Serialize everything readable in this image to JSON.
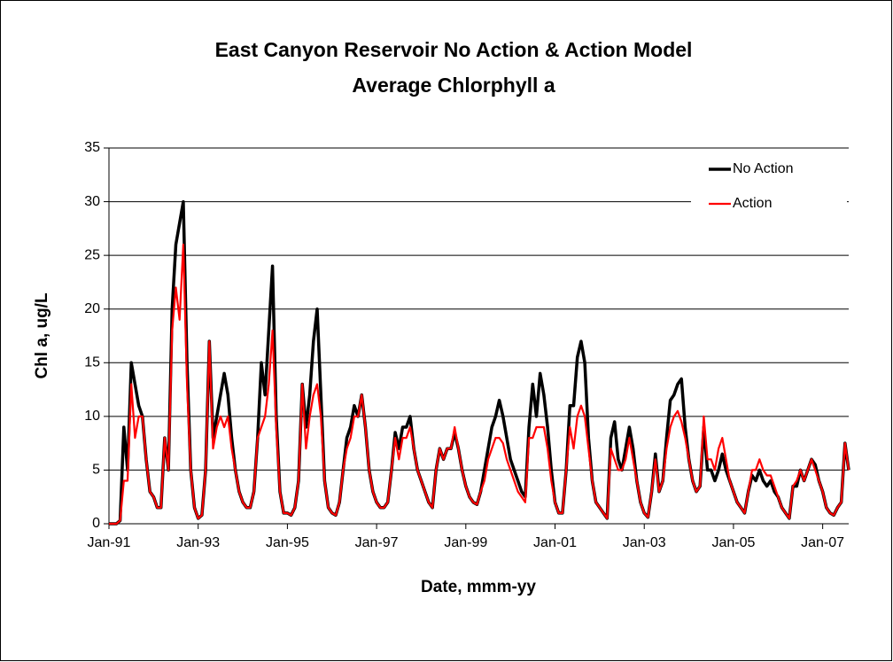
{
  "chart_data": {
    "type": "line",
    "title": [
      "East Canyon Reservoir No Action & Action Model",
      "Average Chlorphyll a"
    ],
    "xlabel": "Date, mmm-yy",
    "ylabel": "Chl a, ug/L",
    "x": [
      "1991-01",
      "1991-02",
      "1991-03",
      "1991-04",
      "1991-05",
      "1991-06",
      "1991-07",
      "1991-08",
      "1991-09",
      "1991-10",
      "1991-11",
      "1991-12",
      "1992-01",
      "1992-02",
      "1992-03",
      "1992-04",
      "1992-05",
      "1992-06",
      "1992-07",
      "1992-08",
      "1992-09",
      "1992-10",
      "1992-11",
      "1992-12",
      "1993-01",
      "1993-02",
      "1993-03",
      "1993-04",
      "1993-05",
      "1993-06",
      "1993-07",
      "1993-08",
      "1993-09",
      "1993-10",
      "1993-11",
      "1993-12",
      "1994-01",
      "1994-02",
      "1994-03",
      "1994-04",
      "1994-05",
      "1994-06",
      "1994-07",
      "1994-08",
      "1994-09",
      "1994-10",
      "1994-11",
      "1994-12",
      "1995-01",
      "1995-02",
      "1995-03",
      "1995-04",
      "1995-05",
      "1995-06",
      "1995-07",
      "1995-08",
      "1995-09",
      "1995-10",
      "1995-11",
      "1995-12",
      "1996-01",
      "1996-02",
      "1996-03",
      "1996-04",
      "1996-05",
      "1996-06",
      "1996-07",
      "1996-08",
      "1996-09",
      "1996-10",
      "1996-11",
      "1996-12",
      "1997-01",
      "1997-02",
      "1997-03",
      "1997-04",
      "1997-05",
      "1997-06",
      "1997-07",
      "1997-08",
      "1997-09",
      "1997-10",
      "1997-11",
      "1997-12",
      "1998-01",
      "1998-02",
      "1998-03",
      "1998-04",
      "1998-05",
      "1998-06",
      "1998-07",
      "1998-08",
      "1998-09",
      "1998-10",
      "1998-11",
      "1998-12",
      "1999-01",
      "1999-02",
      "1999-03",
      "1999-04",
      "1999-05",
      "1999-06",
      "1999-07",
      "1999-08",
      "1999-09",
      "1999-10",
      "1999-11",
      "1999-12",
      "2000-01",
      "2000-02",
      "2000-03",
      "2000-04",
      "2000-05",
      "2000-06",
      "2000-07",
      "2000-08",
      "2000-09",
      "2000-10",
      "2000-11",
      "2000-12",
      "2001-01",
      "2001-02",
      "2001-03",
      "2001-04",
      "2001-05",
      "2001-06",
      "2001-07",
      "2001-08",
      "2001-09",
      "2001-10",
      "2001-11",
      "2001-12",
      "2002-01",
      "2002-02",
      "2002-03",
      "2002-04",
      "2002-05",
      "2002-06",
      "2002-07",
      "2002-08",
      "2002-09",
      "2002-10",
      "2002-11",
      "2002-12",
      "2003-01",
      "2003-02",
      "2003-03",
      "2003-04",
      "2003-05",
      "2003-06",
      "2003-07",
      "2003-08",
      "2003-09",
      "2003-10",
      "2003-11",
      "2003-12",
      "2004-01",
      "2004-02",
      "2004-03",
      "2004-04",
      "2004-05",
      "2004-06",
      "2004-07",
      "2004-08",
      "2004-09",
      "2004-10",
      "2004-11",
      "2004-12",
      "2005-01",
      "2005-02",
      "2005-03",
      "2005-04",
      "2005-05",
      "2005-06",
      "2005-07",
      "2005-08",
      "2005-09",
      "2005-10",
      "2005-11",
      "2005-12",
      "2006-01",
      "2006-02",
      "2006-03",
      "2006-04",
      "2006-05",
      "2006-06",
      "2006-07",
      "2006-08",
      "2006-09",
      "2006-10",
      "2006-11",
      "2006-12",
      "2007-01",
      "2007-02",
      "2007-03",
      "2007-04",
      "2007-05",
      "2007-06",
      "2007-07",
      "2007-08"
    ],
    "series": [
      {
        "name": "No Action",
        "color": "#000000",
        "values": [
          0,
          0,
          0,
          0.3,
          9,
          5,
          15,
          13,
          11,
          10,
          6,
          3,
          2.5,
          1.5,
          1.5,
          8,
          5,
          20,
          26,
          28,
          30,
          15,
          5,
          1.5,
          0.5,
          0.8,
          5,
          17,
          8,
          10,
          12,
          14,
          12,
          8,
          5,
          3,
          2,
          1.5,
          1.5,
          3,
          8,
          15,
          12,
          18,
          24,
          10,
          3,
          1,
          1,
          0.8,
          1.5,
          4,
          13,
          9,
          12,
          17,
          20,
          12,
          4,
          1.5,
          1,
          0.8,
          2,
          5,
          8,
          9,
          11,
          10,
          12,
          9,
          5,
          3,
          2,
          1.5,
          1.5,
          2,
          5,
          8.5,
          7,
          9,
          9,
          10,
          7,
          5,
          4,
          3,
          2,
          1.5,
          5,
          7,
          6,
          7,
          7,
          8.5,
          7,
          5,
          3.5,
          2.5,
          2,
          1.8,
          3,
          5,
          7,
          9,
          10,
          11.5,
          10,
          8,
          6,
          5,
          4,
          3,
          2.5,
          9,
          13,
          10,
          14,
          12,
          9,
          5,
          2,
          1,
          1,
          5,
          11,
          11,
          15.5,
          17,
          15,
          8,
          4,
          2,
          1.5,
          1,
          0.5,
          8,
          9.5,
          6,
          5,
          7,
          9,
          7,
          4,
          2,
          1,
          0.6,
          3,
          6.5,
          3,
          4,
          8,
          11.5,
          12,
          13,
          13.5,
          9,
          6,
          4,
          3,
          3.5,
          9,
          5,
          5,
          4,
          5,
          6.5,
          5,
          4,
          3,
          2,
          1.5,
          1,
          3,
          4.5,
          4,
          5,
          4,
          3.5,
          4,
          3,
          2.5,
          1.5,
          1,
          0.5,
          3.5,
          3.5,
          5,
          4,
          5,
          6,
          5.5,
          4,
          3,
          1.5,
          1,
          0.8,
          1.5,
          2,
          7.5,
          5
        ]
      },
      {
        "name": "Action",
        "color": "#ff0000",
        "values": [
          0,
          0,
          0,
          0.3,
          4,
          4,
          13,
          8,
          10,
          10,
          6,
          3,
          2.5,
          1.5,
          1.5,
          8,
          5,
          18,
          22,
          19,
          26,
          13,
          5,
          1.5,
          0.5,
          0.8,
          5,
          17,
          7,
          9,
          10,
          9,
          10,
          7,
          5,
          3,
          2,
          1.5,
          1.5,
          3,
          8,
          9,
          10,
          13,
          18,
          9,
          3,
          1,
          1,
          0.8,
          1.5,
          4,
          13,
          7,
          10,
          12,
          13,
          10,
          4,
          1.5,
          1,
          0.8,
          2,
          5,
          7,
          8,
          10,
          10,
          12,
          9,
          5,
          3,
          2,
          1.5,
          1.5,
          2,
          5,
          8,
          6,
          8,
          8,
          9,
          7,
          5,
          4,
          3,
          2,
          1.5,
          5,
          7,
          6,
          7,
          7,
          9,
          7,
          5,
          3.5,
          2.5,
          2,
          1.8,
          3,
          4,
          6,
          7,
          8,
          8,
          7.5,
          6,
          5,
          4,
          3,
          2.5,
          2,
          8,
          8,
          9,
          9,
          9,
          7,
          4,
          2,
          1,
          1,
          5,
          9,
          7,
          10,
          11,
          10,
          7,
          4,
          2,
          1.5,
          1,
          0.5,
          7,
          6,
          5,
          5,
          6,
          8,
          6,
          4,
          2,
          1,
          0.6,
          3,
          6,
          3,
          4,
          7,
          9,
          10,
          10.5,
          9.5,
          8,
          6,
          4,
          3,
          3.5,
          10,
          6,
          6,
          5,
          7,
          8,
          6,
          4,
          3,
          2,
          1.5,
          1,
          3,
          5,
          5,
          6,
          5,
          4.5,
          4.5,
          3.5,
          2.5,
          1.5,
          1,
          0.5,
          3.5,
          4,
          5,
          4,
          5,
          6,
          5,
          4,
          3,
          1.5,
          1,
          0.8,
          1.5,
          2,
          7.5,
          5
        ]
      }
    ],
    "xlim": [
      "1991-01",
      "2007-08"
    ],
    "xticks": [
      {
        "value": "1991-01",
        "label": "Jan-91"
      },
      {
        "value": "1993-01",
        "label": "Jan-93"
      },
      {
        "value": "1995-01",
        "label": "Jan-95"
      },
      {
        "value": "1997-01",
        "label": "Jan-97"
      },
      {
        "value": "1999-01",
        "label": "Jan-99"
      },
      {
        "value": "2001-01",
        "label": "Jan-01"
      },
      {
        "value": "2003-01",
        "label": "Jan-03"
      },
      {
        "value": "2005-01",
        "label": "Jan-05"
      },
      {
        "value": "2007-01",
        "label": "Jan-07"
      }
    ],
    "ylim": [
      0,
      35
    ],
    "yticks": [
      0,
      5,
      10,
      15,
      20,
      25,
      30,
      35
    ],
    "grid": true,
    "legend": "upper right"
  }
}
